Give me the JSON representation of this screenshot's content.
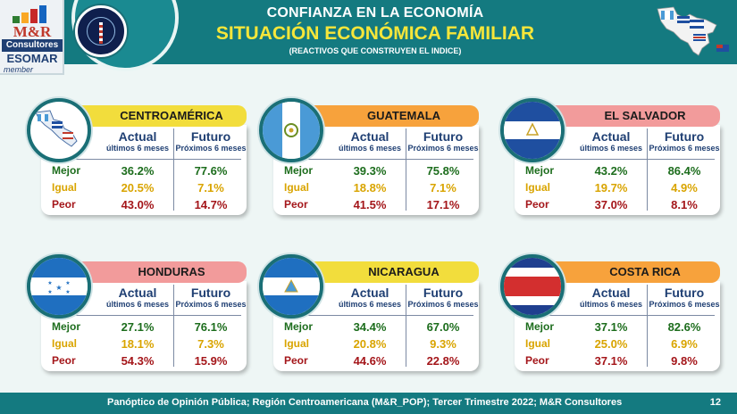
{
  "header": {
    "title": "CONFIANZA EN LA ECONOMÍA",
    "subtitle": "SITUACIÓN ECONÓMICA FAMILIAR",
    "note": "(REACTIVOS QUE CONSTRUYEN EL INDICE)"
  },
  "logo": {
    "brand": "M&R",
    "brand_sub": "Consultores",
    "esomar": "ESOMAR",
    "member": "member"
  },
  "columns": {
    "actual_title": "Actual",
    "actual_sub": "últimos 6 meses",
    "futuro_title": "Futuro",
    "futuro_sub": "Próximos 6 meses"
  },
  "row_labels": {
    "mejor": "Mejor",
    "igual": "Igual",
    "peor": "Peor"
  },
  "colors": {
    "mejor": "#1d6d1d",
    "igual": "#d9a400",
    "peor": "#a4161a",
    "header_bg": "#147a80",
    "accent_yellow": "#f6e63a"
  },
  "cards": [
    {
      "name": "CENTROAMÉRICA",
      "flag": "central-america-map-icon",
      "bar_color": "#f2dd3c",
      "actual": {
        "mejor": "36.2%",
        "igual": "20.5%",
        "peor": "43.0%"
      },
      "futuro": {
        "mejor": "77.6%",
        "igual": "7.1%",
        "peor": "14.7%"
      }
    },
    {
      "name": "GUATEMALA",
      "flag": "guatemala-flag-icon",
      "bar_color": "#f7a23c",
      "actual": {
        "mejor": "39.3%",
        "igual": "18.8%",
        "peor": "41.5%"
      },
      "futuro": {
        "mejor": "75.8%",
        "igual": "7.1%",
        "peor": "17.1%"
      }
    },
    {
      "name": "EL SALVADOR",
      "flag": "el-salvador-flag-icon",
      "bar_color": "#f29b9b",
      "actual": {
        "mejor": "43.2%",
        "igual": "19.7%",
        "peor": "37.0%"
      },
      "futuro": {
        "mejor": "86.4%",
        "igual": "4.9%",
        "peor": "8.1%"
      }
    },
    {
      "name": "HONDURAS",
      "flag": "honduras-flag-icon",
      "bar_color": "#f29b9b",
      "actual": {
        "mejor": "27.1%",
        "igual": "18.1%",
        "peor": "54.3%"
      },
      "futuro": {
        "mejor": "76.1%",
        "igual": "7.3%",
        "peor": "15.9%"
      }
    },
    {
      "name": "NICARAGUA",
      "flag": "nicaragua-flag-icon",
      "bar_color": "#f2dd3c",
      "actual": {
        "mejor": "34.4%",
        "igual": "20.8%",
        "peor": "44.6%"
      },
      "futuro": {
        "mejor": "67.0%",
        "igual": "9.3%",
        "peor": "22.8%"
      }
    },
    {
      "name": "COSTA RICA",
      "flag": "costa-rica-flag-icon",
      "bar_color": "#f7a23c",
      "actual": {
        "mejor": "37.1%",
        "igual": "25.0%",
        "peor": "37.1%"
      },
      "futuro": {
        "mejor": "82.6%",
        "igual": "6.9%",
        "peor": "9.8%"
      }
    }
  ],
  "footer": {
    "source": "Panóptico de Opinión Pública; Región Centroamericana (M&R_POP); Tercer Trimestre 2022; M&R Consultores",
    "page": "12"
  }
}
